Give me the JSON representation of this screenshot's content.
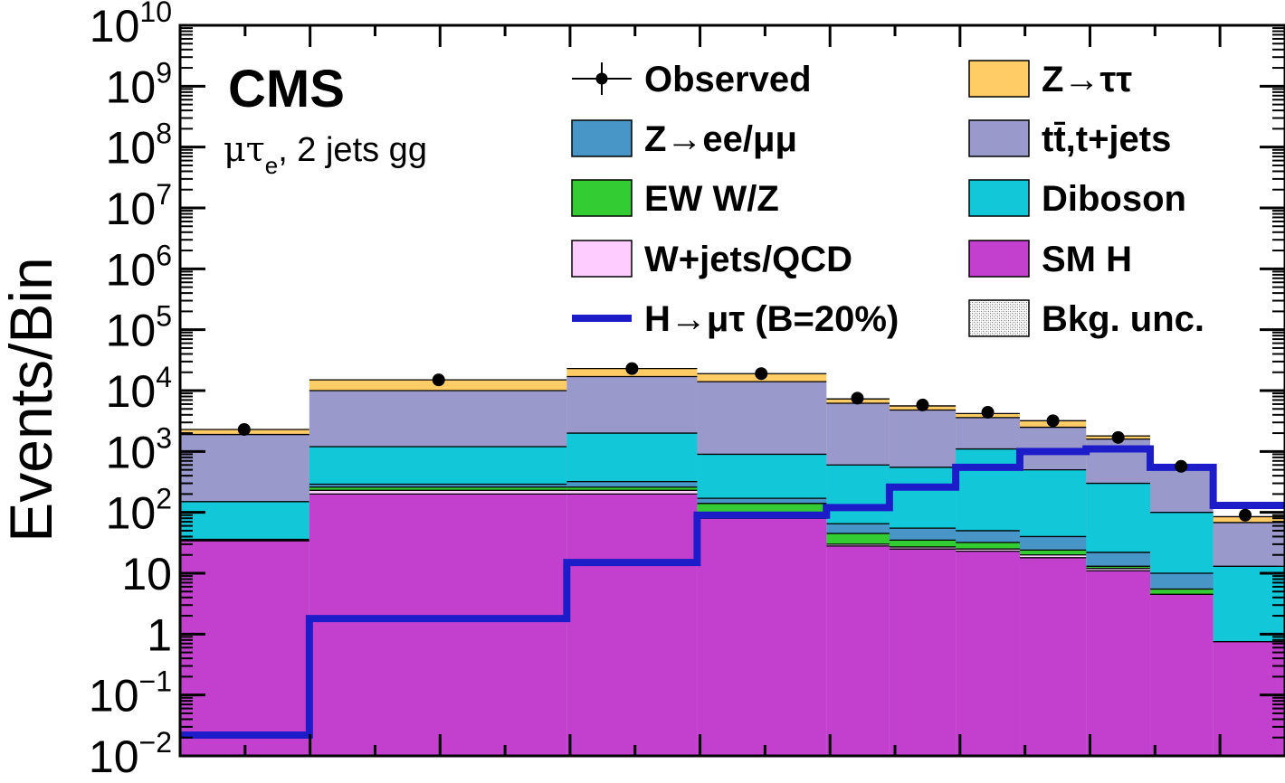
{
  "chart_data": {
    "type": "bar",
    "stacked": true,
    "ylabel": "Events/Bin",
    "yscale": "log",
    "ylim": [
      0.01,
      10000000000
    ],
    "xlim": [
      0,
      1
    ],
    "grid": false,
    "legend_placement": "top-right",
    "experiment_label": "CMS",
    "channel_label": {
      "main": "μτ",
      "sub": "e",
      "rest": ", 2 jets gg"
    },
    "y_ticks": [
      {
        "value": 0.01,
        "base": "10",
        "exp": "−2"
      },
      {
        "value": 0.1,
        "base": "10",
        "exp": "−1"
      },
      {
        "value": 1,
        "base": "1",
        "exp": ""
      },
      {
        "value": 10,
        "base": "10",
        "exp": ""
      },
      {
        "value": 100,
        "base": "10",
        "exp": "2"
      },
      {
        "value": 1000,
        "base": "10",
        "exp": "3"
      },
      {
        "value": 10000,
        "base": "10",
        "exp": "4"
      },
      {
        "value": 100000,
        "base": "10",
        "exp": "5"
      },
      {
        "value": 1000000,
        "base": "10",
        "exp": "6"
      },
      {
        "value": 10000000,
        "base": "10",
        "exp": "7"
      },
      {
        "value": 100000000,
        "base": "10",
        "exp": "8"
      },
      {
        "value": 1000000000,
        "base": "10",
        "exp": "9"
      },
      {
        "value": 10000000000,
        "base": "10",
        "exp": "10"
      }
    ],
    "bin_edges": [
      0,
      0.117,
      0.35,
      0.468,
      0.585,
      0.642,
      0.702,
      0.76,
      0.82,
      0.878,
      0.935,
      0.993,
      1.0
    ],
    "stack_order_bottom_to_top": [
      "SM H",
      "W+jets/QCD",
      "EW W/Z",
      "Z→ee/μμ",
      "Diboson",
      "tt̄,t+jets",
      "Z→ττ"
    ],
    "cumulative_stack_tops": [
      {
        "name": "SM H",
        "color": "#c340cf",
        "values": [
          34,
          200,
          200,
          80,
          28,
          25,
          23,
          18,
          11,
          4.5,
          0.75,
          0.75
        ]
      },
      {
        "name": "W+jets/QCD",
        "color": "#ffccff",
        "values": [
          34,
          230,
          230,
          85,
          30,
          27,
          25,
          20,
          12,
          4.5,
          0.75,
          0.75
        ]
      },
      {
        "name": "EW W/Z",
        "color": "#33cc33",
        "values": [
          35,
          260,
          260,
          140,
          45,
          35,
          32,
          24,
          13,
          5.5,
          0.75,
          0.75
        ]
      },
      {
        "name": "Z→ee/μμ",
        "color": "#4896c8",
        "values": [
          36,
          290,
          320,
          170,
          65,
          55,
          50,
          40,
          22,
          10,
          0.75,
          0.75
        ]
      },
      {
        "name": "Diboson",
        "color": "#12c8d8",
        "values": [
          150,
          1200,
          2000,
          900,
          600,
          550,
          1100,
          500,
          300,
          100,
          13,
          13
        ]
      },
      {
        "name": "tt̄,t+jets",
        "color": "#9999cc",
        "values": [
          1900,
          10000,
          17000,
          14000,
          6200,
          4800,
          3600,
          2500,
          1600,
          570,
          68,
          68
        ]
      },
      {
        "name": "Z→ττ",
        "color": "#ffcc66",
        "values": [
          2300,
          15000,
          23000,
          19000,
          7300,
          5600,
          4200,
          3200,
          1800,
          600,
          85,
          85
        ]
      }
    ],
    "signal": {
      "name": "H→μτ (B=20%)",
      "color": "#1c1cc8",
      "values": [
        0.022,
        1.8,
        15,
        90,
        120,
        260,
        550,
        1000,
        1100,
        550,
        130,
        130
      ]
    },
    "observed": {
      "name": "Observed",
      "x": [
        0.058,
        0.234,
        0.409,
        0.526,
        0.613,
        0.672,
        0.731,
        0.79,
        0.849,
        0.906,
        0.964
      ],
      "y": [
        2300,
        15000,
        23000,
        19000,
        7500,
        5800,
        4400,
        3200,
        1700,
        570,
        90
      ]
    },
    "legend": [
      {
        "label": "Observed",
        "kind": "marker",
        "color": "#000000"
      },
      {
        "label": "Z→ττ",
        "kind": "box",
        "color": "#ffcc66"
      },
      {
        "label": "Z→ee/μμ",
        "kind": "box",
        "color": "#4896c8"
      },
      {
        "label": "tt̄,t+jets",
        "kind": "box",
        "color": "#9999cc"
      },
      {
        "label": "EW W/Z",
        "kind": "box",
        "color": "#33cc33"
      },
      {
        "label": "Diboson",
        "kind": "box",
        "color": "#12c8d8"
      },
      {
        "label": "W+jets/QCD",
        "kind": "box",
        "color": "#ffccff"
      },
      {
        "label": "SM H",
        "kind": "box",
        "color": "#c340cf"
      },
      {
        "label": "H→μτ (B=20%)",
        "kind": "line",
        "color": "#1c1cc8"
      },
      {
        "label": "Bkg. unc.",
        "kind": "hatch",
        "color": "#888888"
      }
    ]
  }
}
